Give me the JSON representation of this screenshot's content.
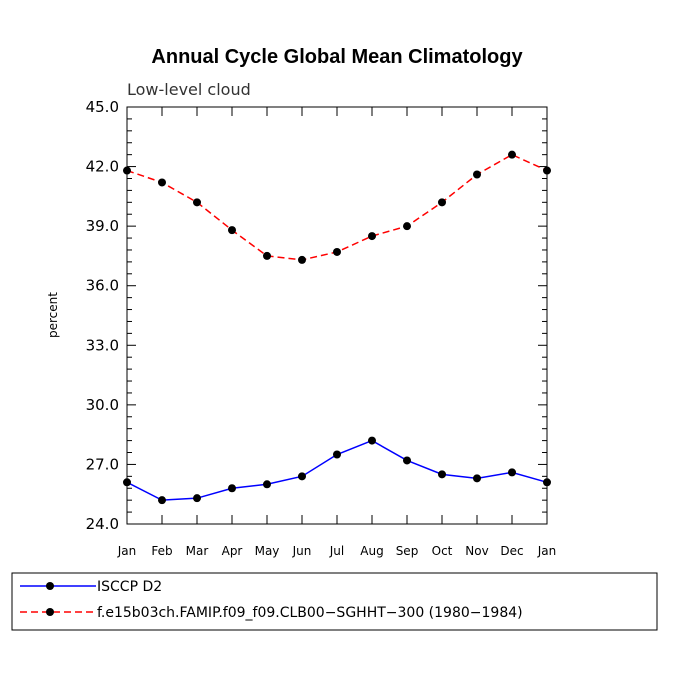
{
  "chart_data": {
    "type": "line",
    "title": "Annual Cycle Global Mean Climatology",
    "subtitle": "Low-level cloud",
    "xlabel": "",
    "ylabel": "percent",
    "categories": [
      "Jan",
      "Feb",
      "Mar",
      "Apr",
      "May",
      "Jun",
      "Jul",
      "Aug",
      "Sep",
      "Oct",
      "Nov",
      "Dec",
      "Jan"
    ],
    "ylim": [
      24.0,
      45.0
    ],
    "yticks": [
      "24.0",
      "27.0",
      "30.0",
      "33.0",
      "36.0",
      "39.0",
      "42.0",
      "45.0"
    ],
    "grid": false,
    "legend_position": "bottom-left",
    "series": [
      {
        "name": "ISCCP D2",
        "color": "#0000ff",
        "line_style": "solid",
        "values": [
          26.1,
          25.2,
          25.3,
          25.8,
          26.0,
          26.4,
          27.5,
          28.2,
          27.2,
          26.5,
          26.3,
          26.6,
          26.1
        ]
      },
      {
        "name": "f.e15b03ch.FAMIP.f09_f09.CLB00−SGHHT−300 (1980−1984)",
        "color": "#ff0000",
        "line_style": "dashed",
        "values": [
          41.8,
          41.2,
          40.2,
          38.8,
          37.5,
          37.3,
          37.7,
          38.5,
          39.0,
          40.2,
          41.6,
          42.6,
          41.8
        ]
      }
    ]
  }
}
